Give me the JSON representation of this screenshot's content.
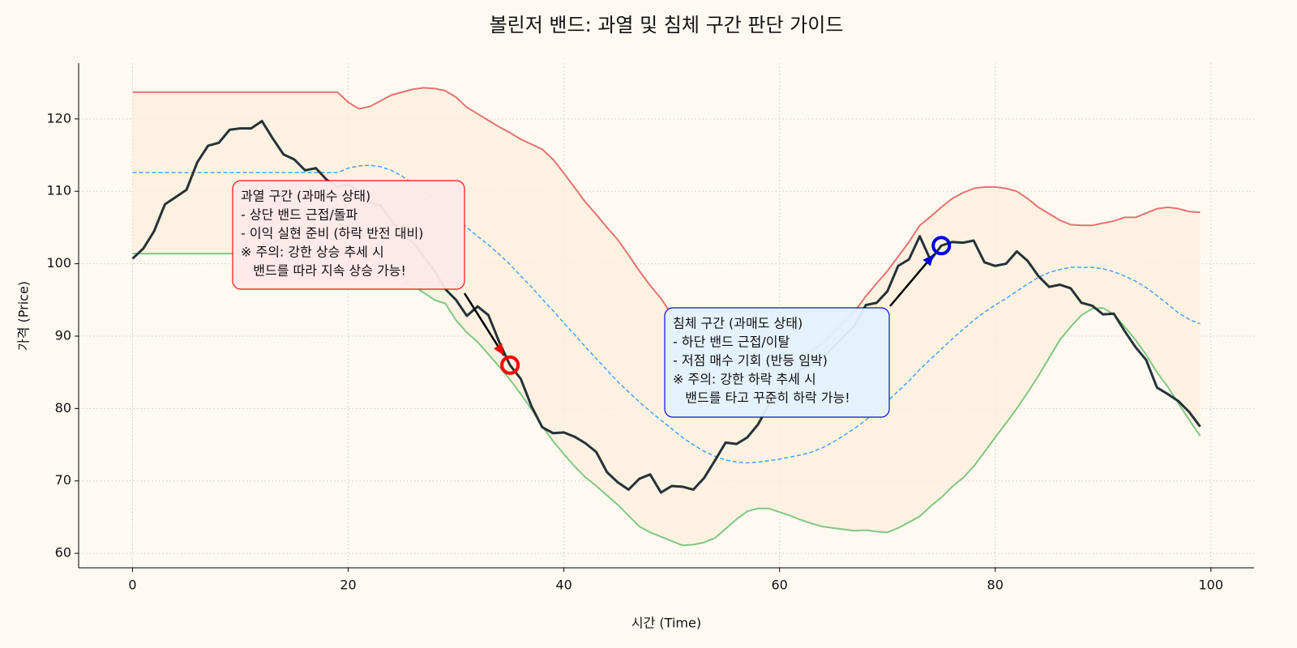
{
  "chart_data": {
    "type": "line",
    "title": "볼린저 밴드: 과열 및 침체 구간 판단 가이드",
    "xlabel": "시간 (Time)",
    "ylabel": "가격 (Price)",
    "x": [
      0,
      1,
      2,
      3,
      4,
      5,
      6,
      7,
      8,
      9,
      10,
      11,
      12,
      13,
      14,
      15,
      16,
      17,
      18,
      19,
      20,
      21,
      22,
      23,
      24,
      25,
      26,
      27,
      28,
      29,
      30,
      31,
      32,
      33,
      34,
      35,
      36,
      37,
      38,
      39,
      40,
      41,
      42,
      43,
      44,
      45,
      46,
      47,
      48,
      49,
      50,
      51,
      52,
      53,
      54,
      55,
      56,
      57,
      58,
      59,
      60,
      61,
      62,
      63,
      64,
      65,
      66,
      67,
      68,
      69,
      70,
      71,
      72,
      73,
      74,
      75,
      76,
      77,
      78,
      79,
      80,
      81,
      82,
      83,
      84,
      85,
      86,
      87,
      88,
      89,
      90,
      91,
      92,
      93,
      94,
      95,
      96,
      97,
      98,
      99
    ],
    "series": [
      {
        "color": "#e57373",
        "dash": false,
        "width": 2,
        "values": [
          123.7,
          123.7,
          123.7,
          123.7,
          123.7,
          123.7,
          123.7,
          123.7,
          123.7,
          123.7,
          123.7,
          123.7,
          123.7,
          123.7,
          123.7,
          123.7,
          123.7,
          123.7,
          123.7,
          123.7,
          122.3,
          121.4,
          121.7,
          122.5,
          123.3,
          123.7,
          124.1,
          124.3,
          124.2,
          123.9,
          123,
          121.6,
          120.7,
          119.8,
          118.9,
          118.1,
          117.2,
          116.5,
          115.8,
          114.4,
          112.5,
          110.5,
          108.5,
          106.8,
          105,
          103.3,
          101.2,
          99,
          97,
          95.2,
          93,
          91,
          89,
          87.5,
          86,
          85,
          84.5,
          84.5,
          85,
          85.5,
          86,
          86.5,
          87,
          88,
          89,
          90.5,
          92,
          93.5,
          95.5,
          97.3,
          99,
          101,
          103,
          105.3,
          106.5,
          107.8,
          109,
          109.8,
          110.4,
          110.6,
          110.6,
          110.4,
          110,
          109,
          107.8,
          106.9,
          106,
          105.4,
          105.3,
          105.3,
          105.6,
          105.9,
          106.4,
          106.4,
          107,
          107.6,
          107.8,
          107.6,
          107.2,
          107.1
        ]
      },
      {
        "color": "#42a5f5",
        "dash": true,
        "width": 1.5,
        "values": [
          112.6,
          112.6,
          112.6,
          112.6,
          112.6,
          112.6,
          112.6,
          112.6,
          112.6,
          112.6,
          112.6,
          112.6,
          112.6,
          112.6,
          112.6,
          112.6,
          112.6,
          112.6,
          112.6,
          112.6,
          113.2,
          113.5,
          113.6,
          113.4,
          112.9,
          112.1,
          111,
          110,
          108.9,
          107.6,
          106.3,
          105,
          103.8,
          102.6,
          101.3,
          99.9,
          98.3,
          96.8,
          95.1,
          93.5,
          91.8,
          90.2,
          88.5,
          86.9,
          85.3,
          83.7,
          82.3,
          80.9,
          79.6,
          78.4,
          77.2,
          76,
          75,
          74.1,
          73.4,
          72.9,
          72.6,
          72.5,
          72.6,
          72.8,
          73,
          73.3,
          73.6,
          74,
          74.6,
          75.4,
          76.3,
          77.3,
          78.4,
          79.7,
          81,
          82.4,
          83.8,
          85.4,
          86.8,
          88.2,
          89.6,
          90.9,
          92.2,
          93.3,
          94.3,
          95.2,
          96.2,
          97.2,
          98.1,
          98.8,
          99.2,
          99.5,
          99.5,
          99.5,
          99.3,
          98.9,
          98.3,
          97.6,
          96.7,
          95.6,
          94.4,
          93.2,
          92.3,
          91.7
        ]
      },
      {
        "color": "#81c784",
        "dash": false,
        "width": 2,
        "values": [
          101.4,
          101.4,
          101.4,
          101.4,
          101.4,
          101.4,
          101.4,
          101.4,
          101.4,
          101.4,
          101.4,
          101.4,
          101.4,
          101.4,
          101.4,
          101.4,
          101.4,
          101.4,
          101.4,
          101.4,
          101.4,
          101.2,
          100.5,
          99.8,
          99,
          98,
          97,
          96,
          95,
          94.5,
          92.2,
          90.5,
          89.2,
          87.5,
          85.8,
          84,
          82,
          79.9,
          77.5,
          75.5,
          73.7,
          72,
          70.5,
          69.3,
          68,
          66.7,
          65.2,
          63.7,
          62.9,
          62.3,
          61.7,
          61.1,
          61.2,
          61.5,
          62.1,
          63.4,
          64.7,
          65.8,
          66.2,
          66.2,
          65.7,
          65.2,
          64.6,
          64.1,
          63.7,
          63.5,
          63.3,
          63.1,
          63.2,
          63,
          62.9,
          63.5,
          64.3,
          65.1,
          66.5,
          67.7,
          69.2,
          70.4,
          72,
          74,
          76,
          78,
          80,
          82.2,
          84.5,
          87,
          89.5,
          91.3,
          92.9,
          93.8,
          93.9,
          93,
          91.3,
          89.5,
          87.4,
          85,
          83,
          80.7,
          78.4,
          76.2
        ]
      },
      {
        "color": "#263238",
        "dash": false,
        "width": 3,
        "values": [
          100.7,
          102.1,
          104.5,
          108.2,
          109.2,
          110.2,
          114,
          116.3,
          116.7,
          118.5,
          118.7,
          118.7,
          119.7,
          117.3,
          115.1,
          114.4,
          112.9,
          113.2,
          111.6,
          110.6,
          111,
          110,
          108.5,
          108,
          106,
          104,
          103,
          101,
          99,
          96.5,
          95,
          92.8,
          94.1,
          92.9,
          89.2,
          86,
          84.1,
          80.3,
          77.4,
          76.6,
          76.7,
          76.1,
          75.2,
          74,
          71.2,
          69.8,
          68.8,
          70.3,
          70.9,
          68.4,
          69.3,
          69.2,
          68.8,
          70.4,
          72.8,
          75.3,
          75.1,
          76,
          77.8,
          80.5,
          82,
          84,
          85.5,
          86,
          87,
          88.5,
          90,
          91.5,
          94.3,
          94.6,
          96.2,
          99.7,
          100.6,
          103.8,
          100.5,
          102.5,
          103,
          102.9,
          103.2,
          100.2,
          99.7,
          100,
          101.7,
          100.4,
          98.3,
          96.8,
          97.1,
          96.6,
          94.6,
          94.2,
          93,
          93.1,
          90.7,
          88.5,
          86.7,
          82.9,
          82,
          81,
          79.5,
          77.5
        ]
      }
    ],
    "band_fill": "#fdf0dc",
    "xlim": [
      -5,
      104
    ],
    "ylim": [
      58,
      127.7
    ],
    "xticks": [
      0,
      20,
      40,
      60,
      80,
      100
    ],
    "yticks": [
      60,
      70,
      80,
      90,
      100,
      110,
      120
    ],
    "grid": true,
    "annotations": [
      {
        "x": 35,
        "y": 86,
        "color": "#ff0000",
        "box_fill": "#ffe9ea",
        "lines": [
          "과열 구간 (과매수 상태)",
          "- 상단 밴드 근접/돌파",
          "- 이익 실현 준비 (하락 반전 대비)",
          "※ 주의: 강한 상승 추세 시",
          "   밴드를 따라 지속 상승 가능!"
        ]
      },
      {
        "x": 75,
        "y": 102.5,
        "color": "#0000dd",
        "box_fill": "#e3f2fd",
        "lines": [
          "침체 구간 (과매도 상태)",
          "- 하단 밴드 근접/이탈",
          "- 저점 매수 기회 (반등 임박)",
          "※ 주의: 강한 하락 추세 시",
          "   밴드를 타고 꾸준히 하락 가능!"
        ]
      }
    ]
  }
}
